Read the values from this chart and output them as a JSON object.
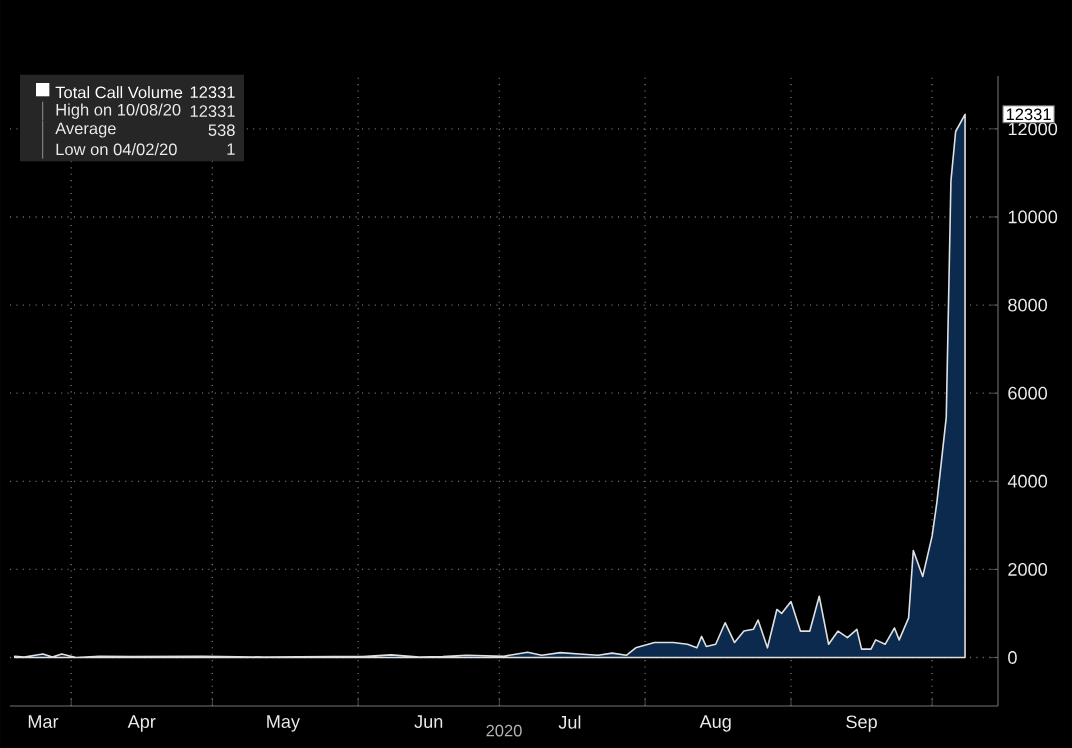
{
  "chart_data": {
    "type": "area",
    "xlabel": "2020",
    "x": [
      "2020-03-20",
      "2020-03-22",
      "2020-03-26",
      "2020-03-28",
      "2020-03-30",
      "2020-04-02",
      "2020-04-07",
      "2020-04-14",
      "2020-04-29",
      "2020-05-12",
      "2020-05-27",
      "2020-06-02",
      "2020-06-08",
      "2020-06-14",
      "2020-06-19",
      "2020-06-24",
      "2020-07-02",
      "2020-07-07",
      "2020-07-10",
      "2020-07-14",
      "2020-07-18",
      "2020-07-22",
      "2020-07-25",
      "2020-07-28",
      "2020-07-30",
      "2020-08-03",
      "2020-08-07",
      "2020-08-10",
      "2020-08-12",
      "2020-08-13",
      "2020-08-14",
      "2020-08-16",
      "2020-08-18",
      "2020-08-20",
      "2020-08-22",
      "2020-08-24",
      "2020-08-25",
      "2020-08-27",
      "2020-08-29",
      "2020-08-30",
      "2020-09-01",
      "2020-09-03",
      "2020-09-05",
      "2020-09-07",
      "2020-09-09",
      "2020-09-11",
      "2020-09-13",
      "2020-09-15",
      "2020-09-16",
      "2020-09-18",
      "2020-09-19",
      "2020-09-21",
      "2020-09-23",
      "2020-09-24",
      "2020-09-26",
      "2020-09-27",
      "2020-09-29",
      "2020-10-01",
      "2020-10-02",
      "2020-10-04",
      "2020-10-05",
      "2020-10-06",
      "2020-10-08"
    ],
    "series": [
      {
        "name": "Total Call Volume",
        "color": "#0c2a4d",
        "values": [
          30,
          10,
          80,
          10,
          80,
          1,
          30,
          20,
          30,
          10,
          20,
          20,
          60,
          10,
          20,
          50,
          30,
          120,
          50,
          110,
          80,
          50,
          100,
          50,
          220,
          340,
          340,
          300,
          220,
          480,
          250,
          300,
          790,
          340,
          600,
          640,
          850,
          220,
          1090,
          1000,
          1270,
          600,
          600,
          1390,
          300,
          600,
          450,
          640,
          190,
          190,
          400,
          300,
          670,
          400,
          900,
          2430,
          1840,
          2760,
          3510,
          5450,
          10820,
          11940,
          12331
        ]
      }
    ],
    "xlim": [
      "2020-03-19",
      "2020-10-15"
    ],
    "xticks": [
      {
        "value": "2020-03-26",
        "label": "Mar"
      },
      {
        "value": "2020-04-01",
        "label": null
      },
      {
        "value": "2020-04-16",
        "label": "Apr"
      },
      {
        "value": "2020-05-01",
        "label": null
      },
      {
        "value": "2020-05-16",
        "label": "May"
      },
      {
        "value": "2020-06-01",
        "label": null
      },
      {
        "value": "2020-06-16",
        "label": "Jun"
      },
      {
        "value": "2020-07-01",
        "label": null
      },
      {
        "value": "2020-07-16",
        "label": "Jul"
      },
      {
        "value": "2020-08-01",
        "label": null
      },
      {
        "value": "2020-08-16",
        "label": "Aug"
      },
      {
        "value": "2020-09-01",
        "label": null
      },
      {
        "value": "2020-09-16",
        "label": "Sep"
      },
      {
        "value": "2020-10-01",
        "label": null
      }
    ],
    "ylim": [
      -1100,
      13200
    ],
    "yticks": [
      0,
      2000,
      4000,
      6000,
      8000,
      10000,
      12000
    ],
    "grid": true,
    "legend": "top left",
    "annotations": [
      "12331",
      "High on 10/08/20",
      "12331",
      "Average",
      "538",
      "Low on 04/02/20",
      "1",
      {
        "text": "12331",
        "x": "2020-10-08",
        "y": 12331
      }
    ]
  }
}
